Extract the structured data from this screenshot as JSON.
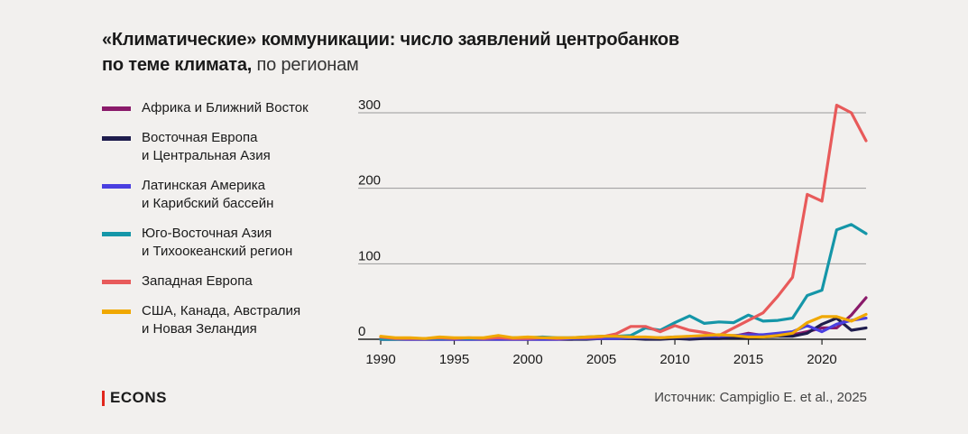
{
  "title": {
    "bold": "«Климатические» коммуникации: число заявлений центробанков по теме климата,",
    "light": "по регионам"
  },
  "brand": "ECONS",
  "source": "Источник: Campiglio E. et al., 2025",
  "chart_data": {
    "type": "line",
    "xlim": [
      1990,
      2023
    ],
    "ylim": [
      0,
      300
    ],
    "x_ticks": [
      "1990",
      "1995",
      "2000",
      "2005",
      "2010",
      "2015",
      "2020"
    ],
    "y_ticks": [
      "300",
      "200",
      "100",
      "0"
    ],
    "grid": "horizontal",
    "legend_position": "left",
    "x": [
      1990,
      1991,
      1992,
      1993,
      1994,
      1995,
      1996,
      1997,
      1998,
      1999,
      2000,
      2001,
      2002,
      2003,
      2004,
      2005,
      2006,
      2007,
      2008,
      2009,
      2010,
      2011,
      2012,
      2013,
      2014,
      2015,
      2016,
      2017,
      2018,
      2019,
      2020,
      2021,
      2022,
      2023
    ],
    "series": [
      {
        "name": "Африка и Ближний Восток",
        "color": "#8a1a6a",
        "values": [
          0,
          0,
          0,
          0,
          0,
          0,
          0,
          0,
          0,
          0,
          0,
          0,
          0,
          0,
          1,
          1,
          2,
          2,
          1,
          2,
          2,
          1,
          2,
          3,
          4,
          8,
          5,
          5,
          6,
          10,
          15,
          15,
          32,
          55
        ]
      },
      {
        "name": "Восточная Европа\nи Центральная Азия",
        "color": "#1f1d4d",
        "values": [
          0,
          0,
          0,
          0,
          0,
          0,
          0,
          0,
          0,
          0,
          0,
          0,
          0,
          0,
          0,
          1,
          1,
          1,
          0,
          0,
          1,
          0,
          1,
          1,
          2,
          2,
          3,
          4,
          4,
          8,
          20,
          28,
          12,
          15
        ]
      },
      {
        "name": "Латинская Америка\nи Карибский бассейн",
        "color": "#4a3fe0",
        "values": [
          0,
          0,
          0,
          0,
          0,
          0,
          0,
          0,
          0,
          0,
          0,
          0,
          0,
          1,
          1,
          1,
          1,
          2,
          2,
          2,
          3,
          3,
          4,
          4,
          5,
          6,
          6,
          8,
          10,
          18,
          10,
          20,
          25,
          28
        ]
      },
      {
        "name": "Юго-Восточная Азия\nи Тихоокеанский регион",
        "color": "#1596a8",
        "values": [
          0,
          0,
          1,
          1,
          1,
          1,
          1,
          1,
          2,
          2,
          2,
          3,
          2,
          2,
          3,
          4,
          4,
          5,
          15,
          12,
          22,
          31,
          21,
          23,
          22,
          32,
          24,
          25,
          28,
          58,
          65,
          145,
          152,
          140
        ]
      },
      {
        "name": "Западная Европа",
        "color": "#e85a5a",
        "values": [
          3,
          1,
          1,
          1,
          2,
          1,
          2,
          1,
          2,
          1,
          1,
          2,
          1,
          2,
          2,
          3,
          7,
          17,
          17,
          10,
          18,
          12,
          9,
          5,
          15,
          25,
          35,
          57,
          82,
          192,
          183,
          310,
          300,
          263
        ]
      },
      {
        "name": "США, Канада, Австралия\nи Новая Зеландия",
        "color": "#f0a800",
        "values": [
          4,
          2,
          2,
          1,
          3,
          2,
          2,
          2,
          5,
          2,
          3,
          2,
          2,
          2,
          3,
          4,
          4,
          3,
          3,
          2,
          3,
          4,
          5,
          6,
          5,
          3,
          3,
          5,
          8,
          22,
          30,
          30,
          24,
          33
        ]
      }
    ]
  }
}
